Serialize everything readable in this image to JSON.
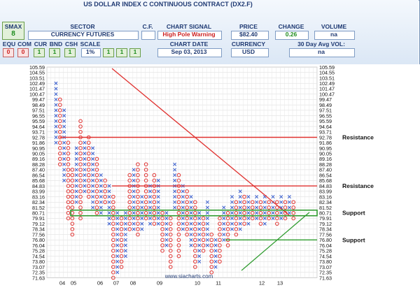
{
  "header": {
    "title": "US DOLLAR INDEX C CONTINUOUS CONTRACT (DX2.F)",
    "smax_label": "SMAX",
    "smax_value": "8",
    "sector_label": "SECTOR",
    "sector_value": "CURRENCY FUTURES",
    "cf_label": "C.F.",
    "chart_signal_label": "CHART SIGNAL",
    "chart_signal_value": "High Pole Warning",
    "price_label": "PRICE",
    "price_value": "$82.40",
    "change_label": "CHANGE",
    "change_value": "0.26",
    "volume_label": "VOLUME",
    "volume_value": "na",
    "equ_label": "EQU",
    "com_label": "COM",
    "cur_label": "CUR",
    "bnd_label": "BND",
    "csh_label": "CSH",
    "scale_label": "SCALE",
    "equ_value": "0",
    "com_value": "0",
    "cur_value": "1",
    "bnd_value": "1",
    "csh_value": "1",
    "scale_value": "1%",
    "extra_flags": [
      "1",
      "1",
      "1"
    ],
    "chart_date_label": "CHART DATE",
    "chart_date_value": "Sep 03, 2013",
    "currency_label": "CURRENCY",
    "currency_value": "USD",
    "avgvol_label": "30 Day Avg VOL:",
    "avgvol_value": "na"
  },
  "chart_data": {
    "type": "point-and-figure",
    "price_scale": [
      "105.59",
      "104.55",
      "103.51",
      "102.49",
      "101.47",
      "100.47",
      "99.47",
      "98.49",
      "97.51",
      "96.55",
      "95.59",
      "94.64",
      "93.71",
      "92.78",
      "91.86",
      "90.95",
      "90.05",
      "89.16",
      "88.28",
      "87.40",
      "86.54",
      "85.68",
      "84.83",
      "83.99",
      "83.16",
      "82.34",
      "81.52",
      "80.71",
      "79.91",
      "79.12",
      "78.34",
      "77.56",
      "76.80",
      "76.04",
      "75.28",
      "74.54",
      "73.80",
      "73.07",
      "72.35",
      "71.63"
    ],
    "x_labels": [
      "04",
      "05",
      "06",
      "07",
      "08",
      "09",
      "10",
      "11",
      "12",
      "13"
    ],
    "annotations": [
      {
        "label": "Resistance",
        "price": 92.78
      },
      {
        "label": "Resistance",
        "price": 84.83
      },
      {
        "label": "Support",
        "price": 80.71
      },
      {
        "label": "Support",
        "price": 76.8
      }
    ],
    "watermark": "www.siacharts.com",
    "colors": {
      "x": "#3a5fcd",
      "o": "#e0312f",
      "resistance": "#e0312f",
      "support": "#2e9b2e",
      "trend_down": "#e0312f",
      "trend_up": "#2e9b2e"
    }
  }
}
